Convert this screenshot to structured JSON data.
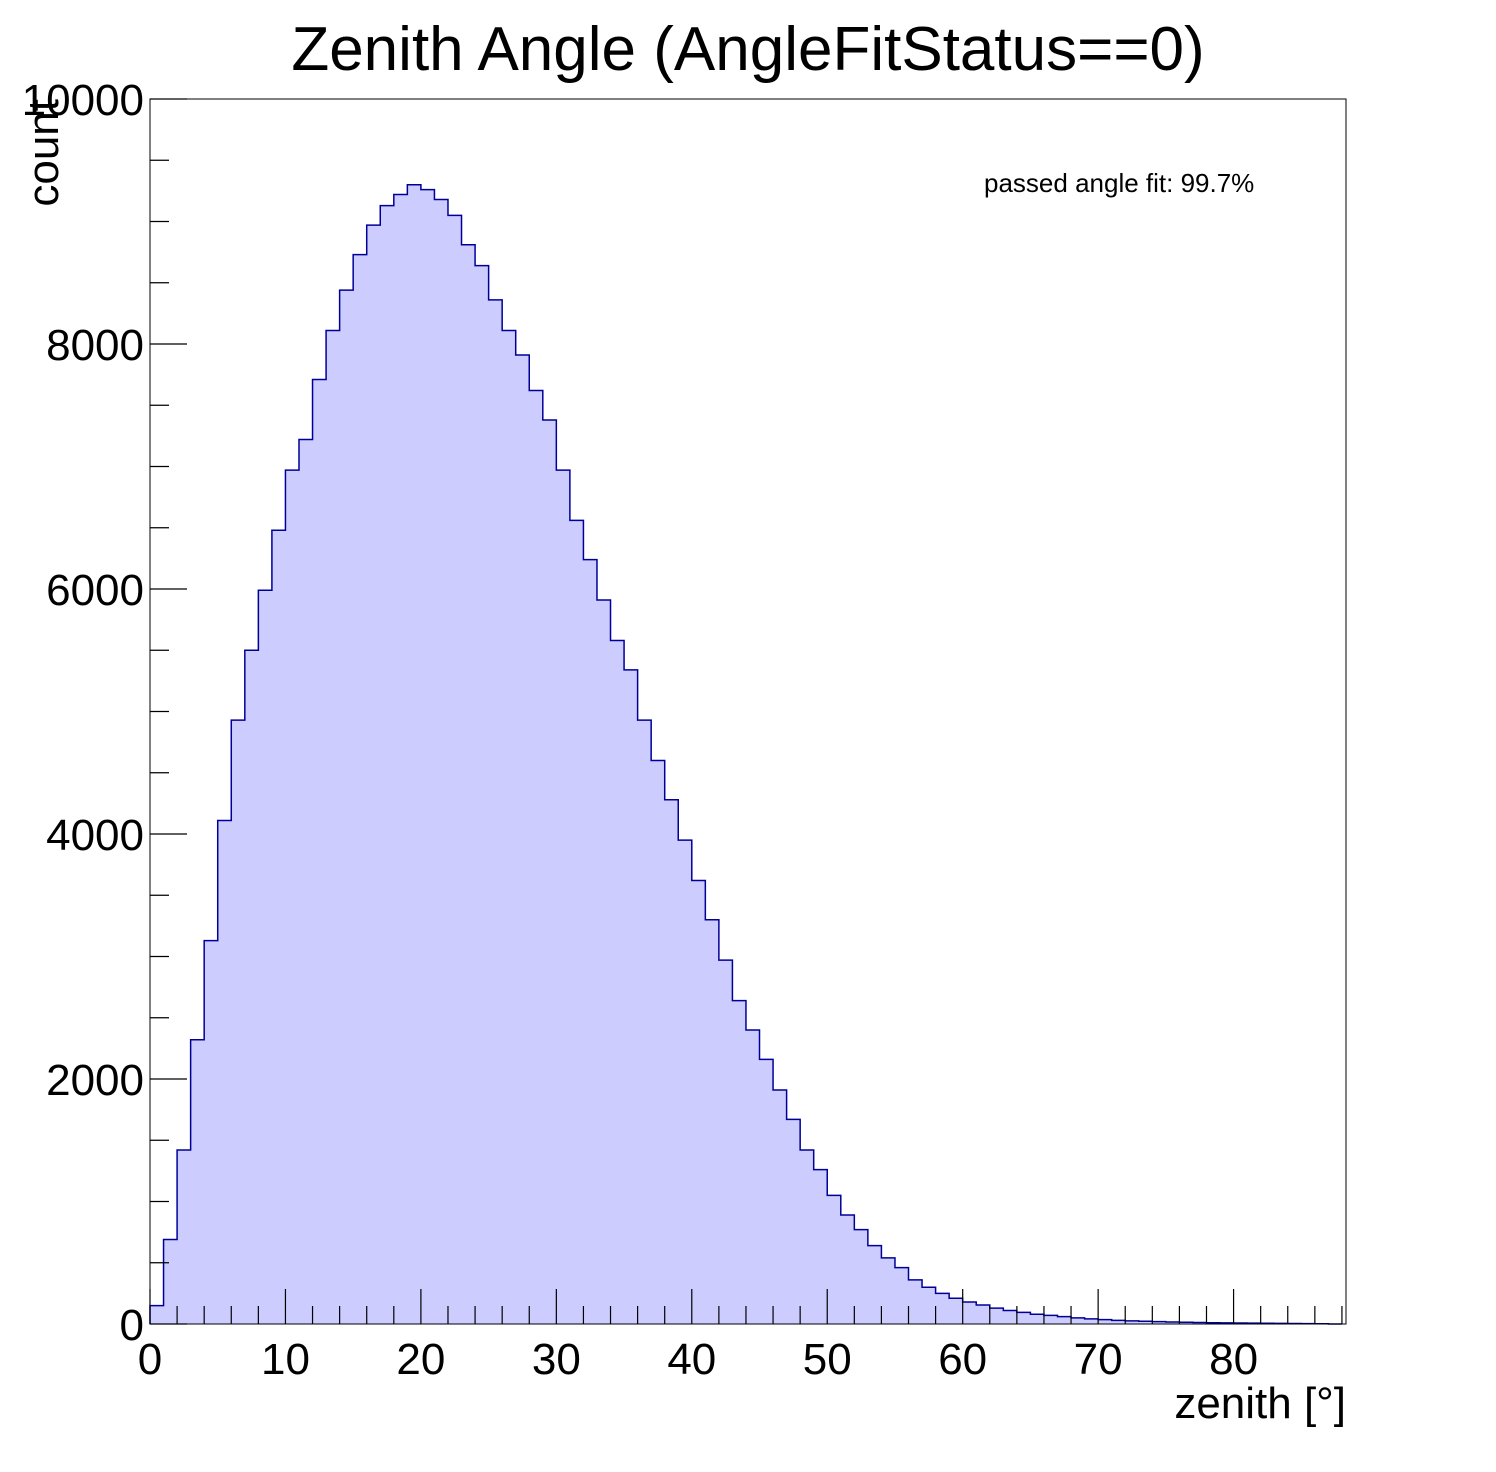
{
  "chart_data": {
    "type": "bar",
    "title": "Zenith Angle (AngleFitStatus==0)",
    "xlabel": "zenith [°]",
    "ylabel": "count",
    "xlim": [
      0,
      88.3
    ],
    "ylim": [
      0,
      10000
    ],
    "bin_width": 1,
    "bin_edges_start": 0,
    "x_major_ticks": [
      0,
      10,
      20,
      30,
      40,
      50,
      60,
      70,
      80
    ],
    "x_tick_labels": [
      "0",
      "10",
      "20",
      "30",
      "40",
      "50",
      "60",
      "70",
      "80"
    ],
    "y_major_ticks": [
      0,
      2000,
      4000,
      6000,
      8000,
      10000
    ],
    "y_tick_labels": [
      "0",
      "2000",
      "4000",
      "6000",
      "8000",
      "10000"
    ],
    "annotation": "passed angle fit: 99.7%",
    "grid": false,
    "fill_color": "#ccccff",
    "line_color": "#000099",
    "values": [
      150,
      690,
      1420,
      2320,
      3130,
      4110,
      4930,
      5500,
      5990,
      6480,
      6970,
      7220,
      7710,
      8110,
      8440,
      8730,
      8970,
      9130,
      9220,
      9300,
      9260,
      9180,
      9050,
      8810,
      8640,
      8360,
      8110,
      7910,
      7620,
      7380,
      6970,
      6560,
      6240,
      5910,
      5580,
      5340,
      4930,
      4600,
      4280,
      3950,
      3620,
      3300,
      2970,
      2640,
      2400,
      2160,
      1910,
      1670,
      1420,
      1260,
      1050,
      890,
      770,
      640,
      540,
      460,
      360,
      300,
      250,
      210,
      180,
      155,
      130,
      110,
      95,
      80,
      70,
      60,
      50,
      42,
      36,
      30,
      26,
      22,
      19,
      16,
      14,
      12,
      10,
      9,
      8,
      7,
      6,
      5,
      4,
      3,
      2,
      0
    ]
  }
}
